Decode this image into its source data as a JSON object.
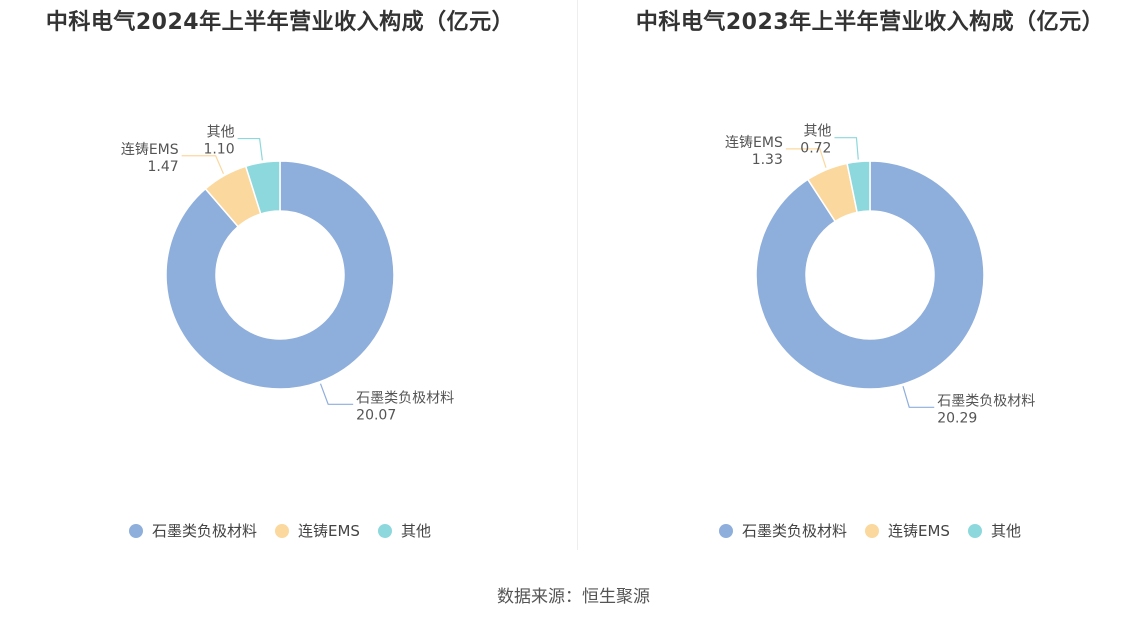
{
  "chart_data": [
    {
      "type": "pie",
      "title": "中科电气2024年上半年营业收入构成（亿元）",
      "categories": [
        "石墨类负极材料",
        "连铸EMS",
        "其他"
      ],
      "values": [
        20.07,
        1.47,
        1.1
      ],
      "value_labels": [
        "20.07",
        "1.47",
        "1.10"
      ],
      "colors": [
        "#8eaedc",
        "#fbd89e",
        "#8dd8dc"
      ],
      "donut": true,
      "legend": "bottom"
    },
    {
      "type": "pie",
      "title": "中科电气2023年上半年营业收入构成（亿元）",
      "categories": [
        "石墨类负极材料",
        "连铸EMS",
        "其他"
      ],
      "values": [
        20.29,
        1.33,
        0.72
      ],
      "value_labels": [
        "20.29",
        "1.33",
        "0.72"
      ],
      "colors": [
        "#8eaedc",
        "#fbd89e",
        "#8dd8dc"
      ],
      "donut": true,
      "legend": "bottom"
    }
  ],
  "footer": "数据来源：恒生聚源"
}
